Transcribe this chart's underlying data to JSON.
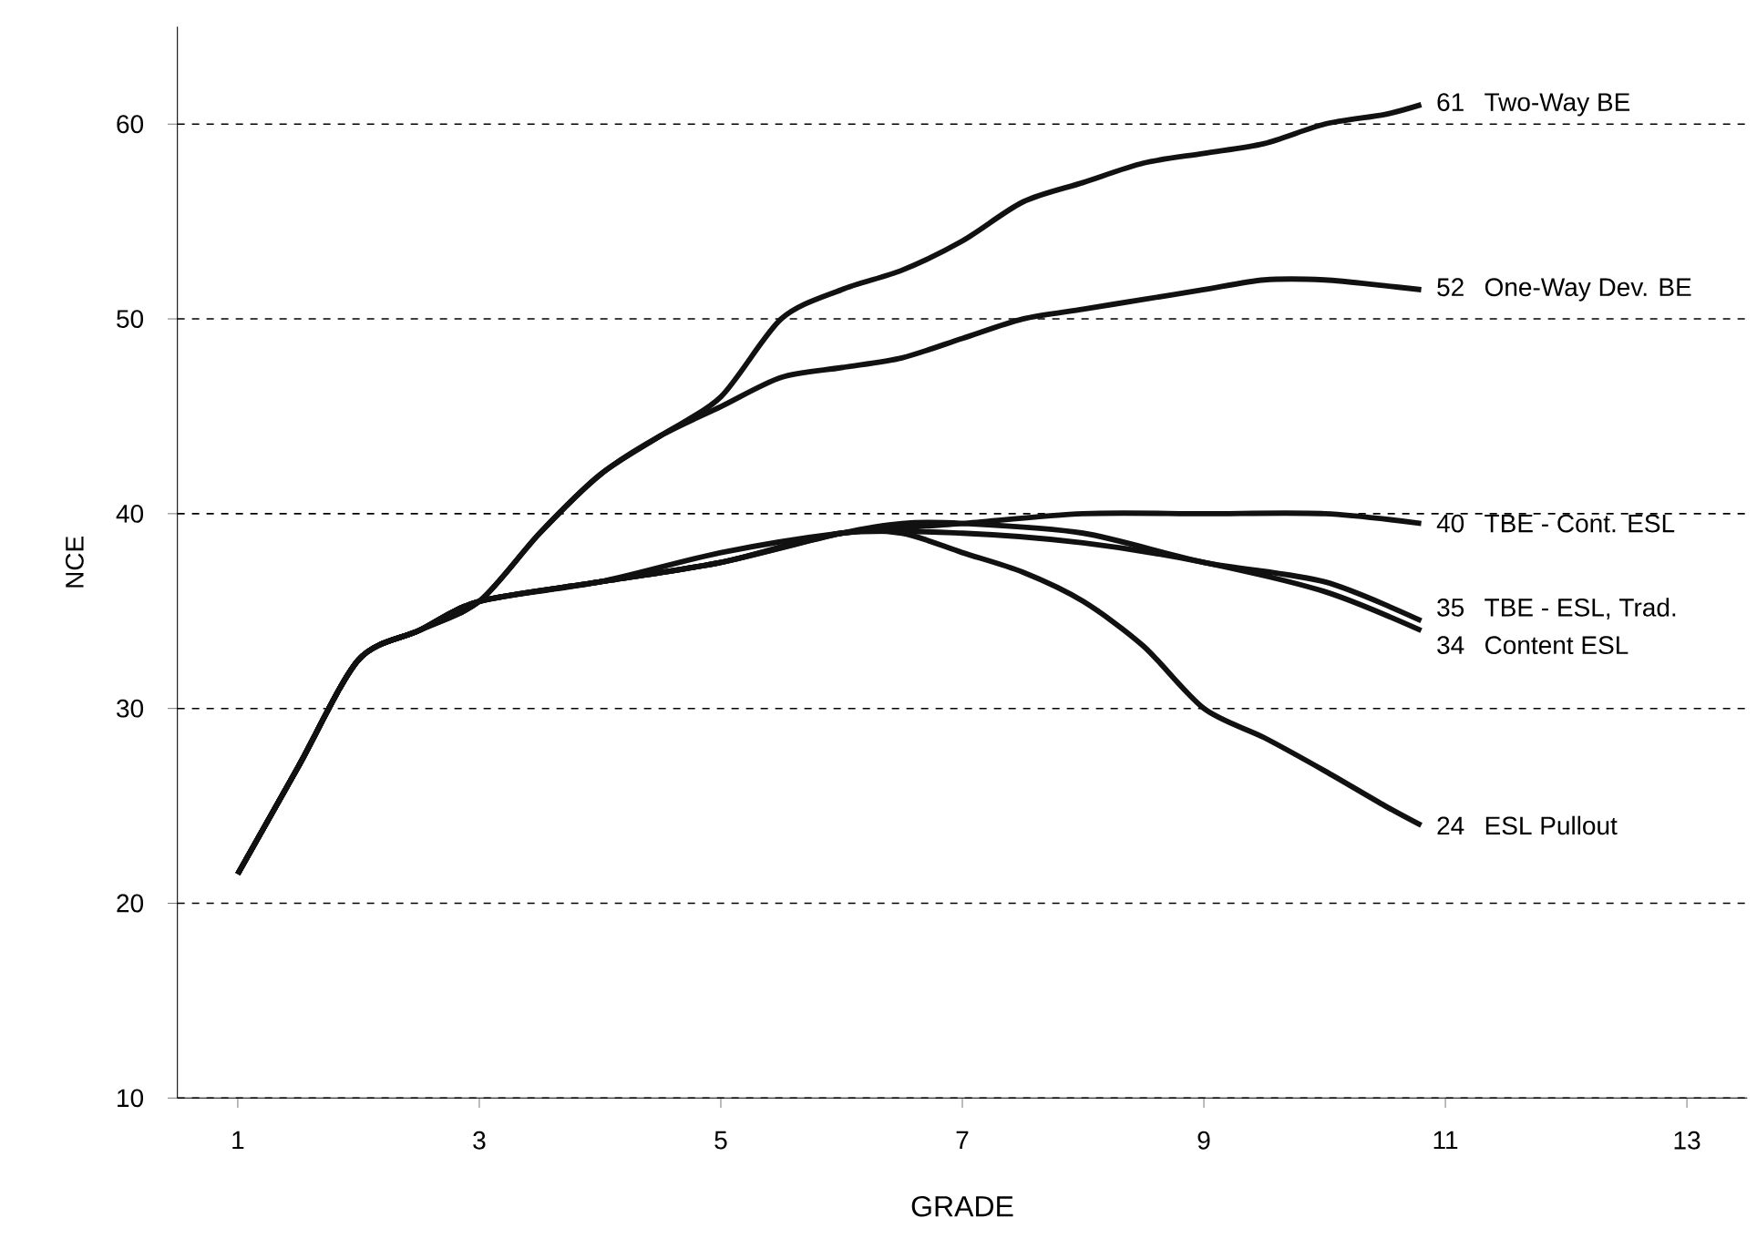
{
  "chart_data": {
    "type": "line",
    "xlabel": "GRADE",
    "ylabel": "NCE",
    "xlim": [
      0.5,
      13.5
    ],
    "ylim": [
      10,
      65
    ],
    "xticks": [
      1,
      3,
      5,
      7,
      9,
      11,
      13
    ],
    "yticks": [
      10,
      20,
      30,
      40,
      50,
      60
    ],
    "grid": "y",
    "marker": "none",
    "line_style": "solid",
    "series": [
      {
        "name": "Two-Way BE",
        "color": "#111111",
        "x": [
          1,
          1.5,
          2,
          2.5,
          3,
          3.5,
          4,
          4.5,
          5,
          5.5,
          6,
          6.5,
          7,
          7.5,
          8,
          8.5,
          9,
          9.5,
          10,
          10.5,
          10.8
        ],
        "values": [
          21.5,
          27,
          32.5,
          34,
          35.5,
          39,
          42,
          44,
          46,
          50,
          51.5,
          52.5,
          54,
          56,
          57,
          58,
          58.5,
          59,
          60,
          60.5,
          61
        ],
        "value_labels": [
          null,
          null,
          null,
          null,
          null,
          null,
          null,
          null,
          null,
          null,
          null,
          null,
          null,
          null,
          null,
          null,
          null,
          null,
          null,
          null,
          "61"
        ]
      },
      {
        "name": "One-Way Dev. BE",
        "color": "#111111",
        "x": [
          1,
          1.5,
          2,
          2.5,
          3,
          3.5,
          4,
          4.5,
          5,
          5.5,
          6,
          6.5,
          7,
          7.5,
          8,
          8.5,
          9,
          9.5,
          10,
          10.5,
          10.8
        ],
        "values": [
          21.5,
          27,
          32.5,
          34,
          35.5,
          39,
          42,
          44,
          45.5,
          47,
          47.5,
          48,
          49,
          50,
          50.5,
          51,
          51.5,
          52,
          52,
          51.7,
          51.5
        ],
        "value_labels": [
          null,
          null,
          null,
          null,
          null,
          null,
          null,
          null,
          null,
          null,
          null,
          null,
          null,
          null,
          null,
          null,
          null,
          null,
          null,
          null,
          "52"
        ]
      },
      {
        "name": "TBE - Cont. ESL",
        "color": "#111111",
        "x": [
          1,
          1.5,
          2,
          2.5,
          3,
          4,
          5,
          6,
          7,
          8,
          9,
          10,
          10.8
        ],
        "values": [
          21.5,
          27,
          32.5,
          34,
          35.5,
          36.5,
          38,
          39,
          39.5,
          40,
          40,
          40,
          39.5
        ],
        "value_labels": [
          null,
          null,
          null,
          null,
          null,
          null,
          null,
          null,
          null,
          null,
          null,
          null,
          "40"
        ]
      },
      {
        "name": "TBE - ESL, Trad.",
        "color": "#111111",
        "x": [
          1,
          1.5,
          2,
          2.5,
          3,
          4,
          5,
          6,
          6.5,
          7,
          8,
          9,
          10,
          10.8
        ],
        "values": [
          21.5,
          27,
          32.5,
          34,
          35.5,
          36.5,
          37.5,
          39,
          39.5,
          39.5,
          39,
          37.5,
          36.5,
          34.5
        ],
        "value_labels": [
          null,
          null,
          null,
          null,
          null,
          null,
          null,
          null,
          null,
          null,
          null,
          null,
          null,
          "35"
        ]
      },
      {
        "name": "Content ESL",
        "color": "#111111",
        "x": [
          1,
          1.5,
          2,
          2.5,
          3,
          4,
          5,
          6,
          7,
          8,
          9,
          10,
          10.8
        ],
        "values": [
          21.5,
          27,
          32.5,
          34,
          35.5,
          36.5,
          37.5,
          39,
          39,
          38.5,
          37.5,
          36,
          34
        ],
        "value_labels": [
          null,
          null,
          null,
          null,
          null,
          null,
          null,
          null,
          null,
          null,
          null,
          null,
          "34"
        ]
      },
      {
        "name": "ESL Pullout",
        "color": "#111111",
        "x": [
          1,
          1.5,
          2,
          2.5,
          3,
          4,
          5,
          6,
          6.5,
          7,
          7.5,
          8,
          8.5,
          9,
          9.5,
          10,
          10.5,
          10.8
        ],
        "values": [
          21.5,
          27,
          32.5,
          34,
          35.5,
          36.5,
          37.5,
          39,
          39,
          38,
          37,
          35.5,
          33.2,
          30,
          28.5,
          26.8,
          25,
          24
        ],
        "value_labels": [
          null,
          null,
          null,
          null,
          null,
          null,
          null,
          null,
          null,
          null,
          null,
          null,
          null,
          null,
          null,
          null,
          null,
          "24"
        ]
      }
    ]
  }
}
